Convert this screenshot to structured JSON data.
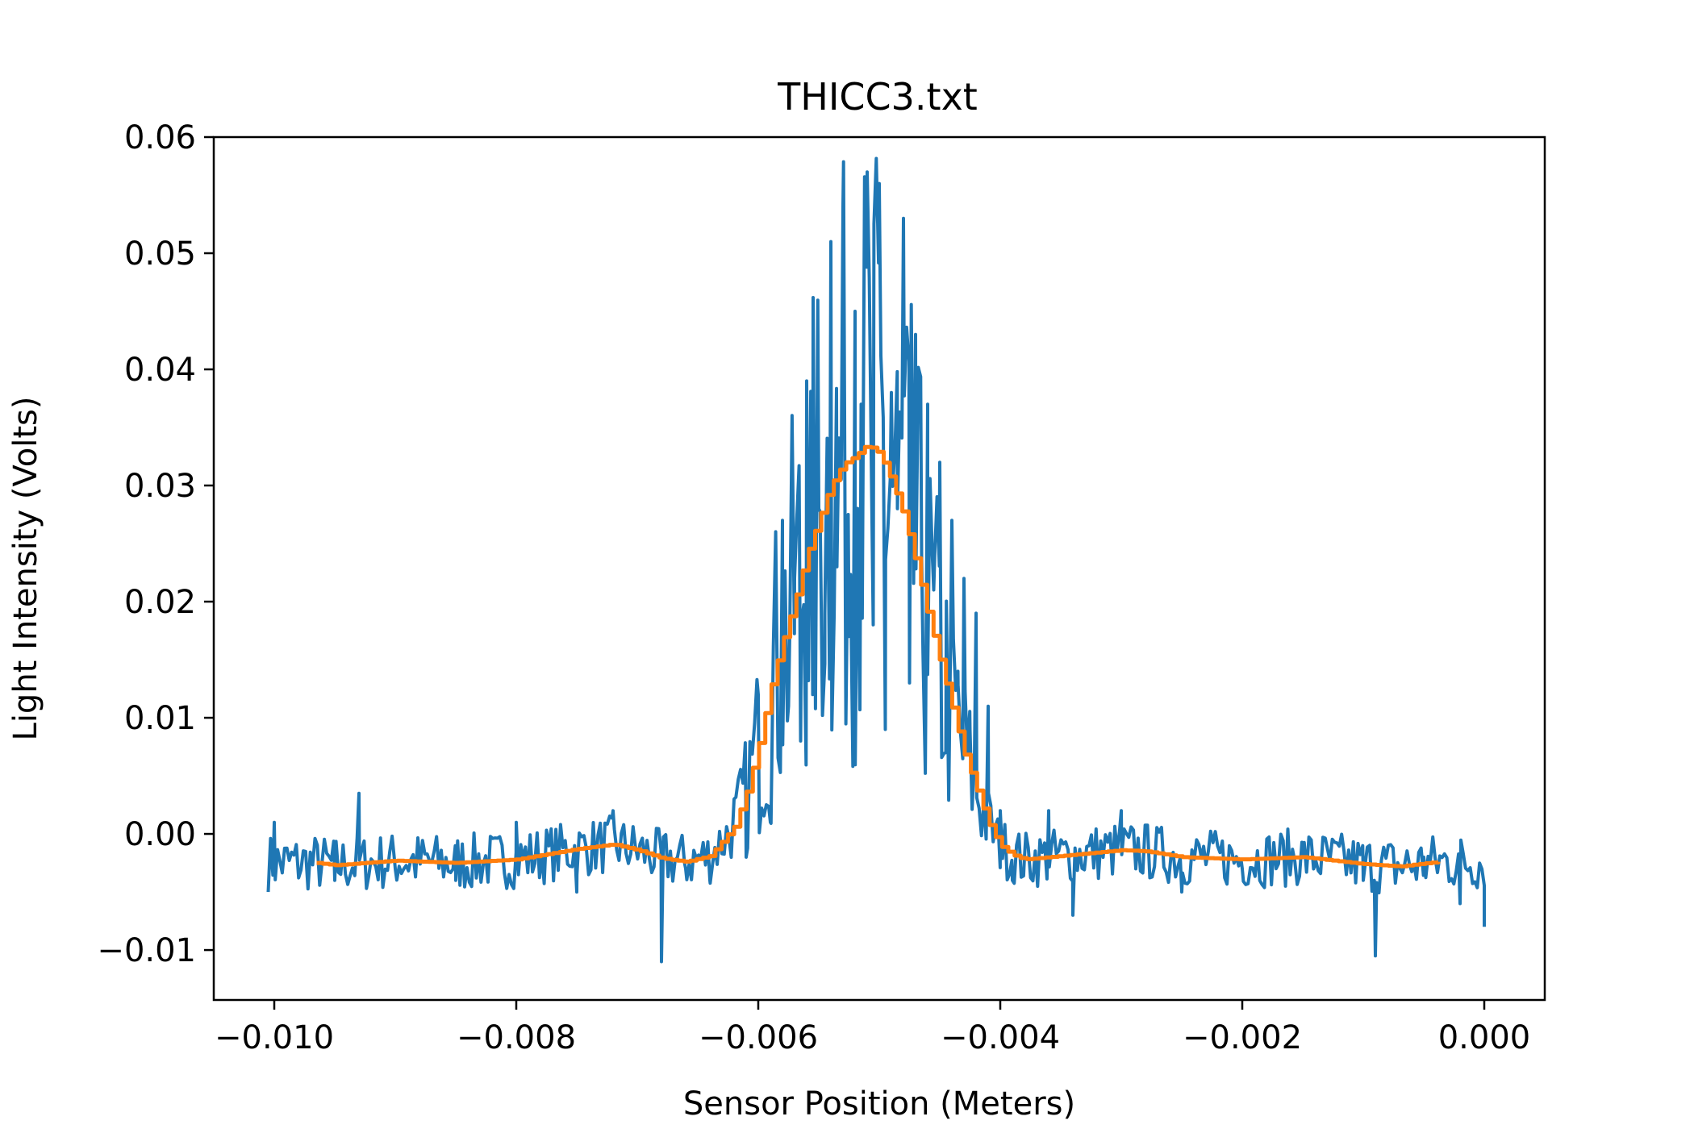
{
  "chart_data": {
    "type": "line",
    "title": "THICC3.txt",
    "xlabel": "Sensor Position (Meters)",
    "ylabel": "Light Intensity (Volts)",
    "xlim": [
      -0.0105,
      0.0005
    ],
    "ylim": [
      -0.0143,
      0.06
    ],
    "xticks": [
      -0.01,
      -0.008,
      -0.006,
      -0.004,
      -0.002,
      0.0
    ],
    "xtick_labels": [
      "−0.010",
      "−0.008",
      "−0.006",
      "−0.004",
      "−0.002",
      "0.000"
    ],
    "yticks": [
      -0.01,
      0.0,
      0.01,
      0.02,
      0.03,
      0.04,
      0.05,
      0.06
    ],
    "ytick_labels": [
      "−0.01",
      "0.00",
      "0.01",
      "0.02",
      "0.03",
      "0.04",
      "0.05",
      "0.06"
    ],
    "grid": false,
    "legend": "none",
    "x_range_raw": [
      -0.01005,
      0.0
    ],
    "x_range_smoothed": [
      -0.00965,
      -0.00038
    ],
    "series": [
      {
        "color": "#1f77b4",
        "role": "raw",
        "x": [
          -0.01,
          -0.0095,
          -0.0093,
          -0.009,
          -0.0085,
          -0.008,
          -0.0075,
          -0.0072,
          -0.0068,
          -0.0066,
          -0.0064,
          -0.0062,
          -0.0061,
          -0.006,
          -0.0059,
          -0.0058,
          -0.00575,
          -0.0057,
          -0.00565,
          -0.0056,
          -0.00555,
          -0.0055,
          -0.00545,
          -0.0054,
          -0.00535,
          -0.0053,
          -0.00525,
          -0.0052,
          -0.00515,
          -0.0051,
          -0.00505,
          -0.005,
          -0.00495,
          -0.0049,
          -0.00485,
          -0.0048,
          -0.00475,
          -0.0047,
          -0.00465,
          -0.0046,
          -0.00455,
          -0.0045,
          -0.00445,
          -0.0044,
          -0.00435,
          -0.0043,
          -0.00425,
          -0.0042,
          -0.0041,
          -0.004,
          -0.0039,
          -0.0038,
          -0.0036,
          -0.0034,
          -0.003,
          -0.0025,
          -0.002,
          -0.0015,
          -0.001,
          -0.0009,
          -0.0005,
          -0.0002,
          0.0
        ],
        "values": [
          0.001,
          -0.004,
          0.0035,
          -0.003,
          -0.004,
          0.001,
          -0.005,
          0.002,
          -0.011,
          -0.003,
          -0.004,
          0.003,
          -0.002,
          0.012,
          0.001,
          0.027,
          0.011,
          0.022,
          0.008,
          0.039,
          0.012,
          0.028,
          0.019,
          0.051,
          0.023,
          0.054,
          0.017,
          0.045,
          0.037,
          0.057,
          0.018,
          0.056,
          0.009,
          0.038,
          0.028,
          0.053,
          0.013,
          0.043,
          0.024,
          0.037,
          0.021,
          0.032,
          0.007,
          0.027,
          0.014,
          0.022,
          0.009,
          0.019,
          0.011,
          0.002,
          -0.004,
          -0.002,
          0.002,
          -0.007,
          0.002,
          -0.005,
          -0.003,
          -0.002,
          -0.004,
          -0.0105,
          -0.002,
          -0.006,
          -0.008
        ]
      },
      {
        "color": "#ff7f0e",
        "role": "smoothed",
        "x": [
          -0.00965,
          -0.0095,
          -0.009,
          -0.0085,
          -0.008,
          -0.0075,
          -0.0072,
          -0.007,
          -0.0068,
          -0.0066,
          -0.0064,
          -0.0062,
          -0.0061,
          -0.006,
          -0.0059,
          -0.0058,
          -0.0057,
          -0.0056,
          -0.0055,
          -0.0054,
          -0.0053,
          -0.0052,
          -0.0051,
          -0.005,
          -0.0049,
          -0.0048,
          -0.0047,
          -0.0046,
          -0.0045,
          -0.0044,
          -0.0043,
          -0.0042,
          -0.0041,
          -0.004,
          -0.0039,
          -0.0038,
          -0.0036,
          -0.0034,
          -0.003,
          -0.0028,
          -0.0025,
          -0.002,
          -0.0015,
          -0.001,
          -0.0007,
          -0.00038
        ],
        "values": [
          -0.0025,
          -0.0027,
          -0.0023,
          -0.0025,
          -0.0022,
          -0.0013,
          -0.0009,
          -0.0014,
          -0.0021,
          -0.0024,
          -0.0019,
          0.0006,
          0.0035,
          0.0075,
          0.0125,
          0.0165,
          0.02,
          0.024,
          0.027,
          0.03,
          0.0318,
          0.0325,
          0.0335,
          0.0328,
          0.0305,
          0.0275,
          0.0235,
          0.019,
          0.015,
          0.011,
          0.007,
          0.004,
          0.001,
          -0.001,
          -0.0018,
          -0.0022,
          -0.002,
          -0.0018,
          -0.0014,
          -0.0015,
          -0.002,
          -0.0022,
          -0.002,
          -0.0026,
          -0.0028,
          -0.0024
        ]
      }
    ]
  }
}
